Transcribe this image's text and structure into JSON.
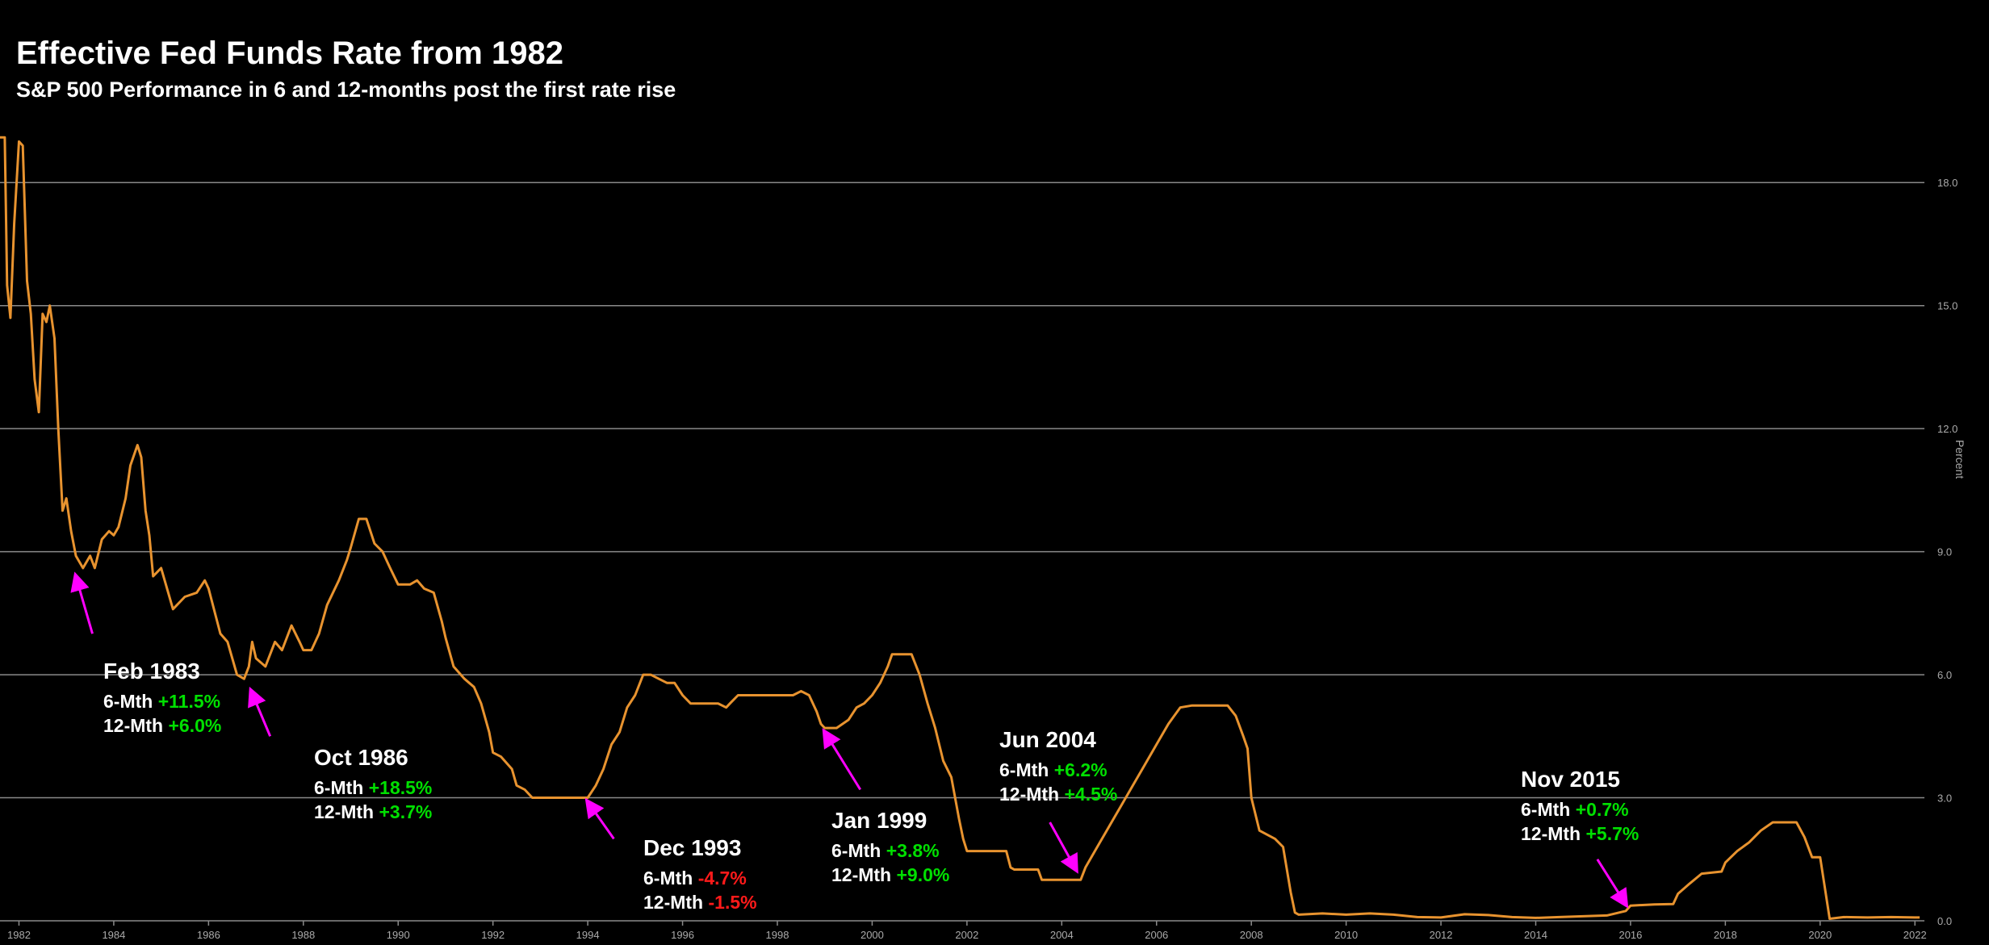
{
  "chart_data": {
    "type": "line",
    "title": "Effective Fed Funds Rate from 1982",
    "subtitle": "S&P 500 Performance in 6 and 12-months post the first rate rise",
    "ylabel": "Percent",
    "xlim": [
      1981.6,
      2022.2
    ],
    "ylim": [
      0,
      19.5
    ],
    "y_ticks": [
      "0.0",
      "3.0",
      "6.0",
      "9.0",
      "12.0",
      "15.0",
      "18.0"
    ],
    "y_tick_values": [
      0,
      3,
      6,
      9,
      12,
      15,
      18
    ],
    "x_ticks": [
      "1982",
      "1984",
      "1986",
      "1988",
      "1990",
      "1992",
      "1994",
      "1996",
      "1998",
      "2000",
      "2002",
      "2004",
      "2006",
      "2008",
      "2010",
      "2012",
      "2014",
      "2016",
      "2018",
      "2020",
      "2022"
    ],
    "x_tick_values": [
      1982,
      1984,
      1986,
      1988,
      1990,
      1992,
      1994,
      1996,
      1998,
      2000,
      2002,
      2004,
      2006,
      2008,
      2010,
      2012,
      2014,
      2016,
      2018,
      2020,
      2022
    ],
    "grid": true,
    "series": [
      {
        "name": "",
        "color": "#e8932f",
        "points": [
          [
            1981.6,
            19.1
          ],
          [
            1981.7,
            19.1
          ],
          [
            1981.75,
            15.5
          ],
          [
            1981.82,
            14.7
          ],
          [
            1981.9,
            17.0
          ],
          [
            1982.0,
            19.0
          ],
          [
            1982.08,
            18.9
          ],
          [
            1982.17,
            15.6
          ],
          [
            1982.25,
            14.8
          ],
          [
            1982.33,
            13.2
          ],
          [
            1982.42,
            12.4
          ],
          [
            1982.5,
            14.8
          ],
          [
            1982.58,
            14.6
          ],
          [
            1982.65,
            15.0
          ],
          [
            1982.75,
            14.2
          ],
          [
            1982.83,
            12.0
          ],
          [
            1982.92,
            10.0
          ],
          [
            1983.0,
            10.3
          ],
          [
            1983.1,
            9.5
          ],
          [
            1983.2,
            8.9
          ],
          [
            1983.35,
            8.6
          ],
          [
            1983.5,
            8.9
          ],
          [
            1983.6,
            8.6
          ],
          [
            1983.75,
            9.3
          ],
          [
            1983.9,
            9.5
          ],
          [
            1984.0,
            9.4
          ],
          [
            1984.1,
            9.6
          ],
          [
            1984.25,
            10.3
          ],
          [
            1984.35,
            11.1
          ],
          [
            1984.5,
            11.6
          ],
          [
            1984.58,
            11.3
          ],
          [
            1984.67,
            10.0
          ],
          [
            1984.75,
            9.4
          ],
          [
            1984.83,
            8.4
          ],
          [
            1985.0,
            8.6
          ],
          [
            1985.25,
            7.6
          ],
          [
            1985.5,
            7.9
          ],
          [
            1985.75,
            8.0
          ],
          [
            1985.92,
            8.3
          ],
          [
            1986.0,
            8.1
          ],
          [
            1986.25,
            7.0
          ],
          [
            1986.4,
            6.8
          ],
          [
            1986.6,
            6.0
          ],
          [
            1986.75,
            5.9
          ],
          [
            1986.85,
            6.2
          ],
          [
            1986.92,
            6.8
          ],
          [
            1987.0,
            6.4
          ],
          [
            1987.2,
            6.2
          ],
          [
            1987.4,
            6.8
          ],
          [
            1987.55,
            6.6
          ],
          [
            1987.75,
            7.2
          ],
          [
            1987.92,
            6.8
          ],
          [
            1988.0,
            6.6
          ],
          [
            1988.17,
            6.6
          ],
          [
            1988.33,
            7.0
          ],
          [
            1988.5,
            7.7
          ],
          [
            1988.75,
            8.3
          ],
          [
            1988.92,
            8.8
          ],
          [
            1989.0,
            9.1
          ],
          [
            1989.17,
            9.8
          ],
          [
            1989.33,
            9.8
          ],
          [
            1989.5,
            9.2
          ],
          [
            1989.67,
            9.0
          ],
          [
            1989.83,
            8.6
          ],
          [
            1990.0,
            8.2
          ],
          [
            1990.25,
            8.2
          ],
          [
            1990.4,
            8.3
          ],
          [
            1990.55,
            8.1
          ],
          [
            1990.75,
            8.0
          ],
          [
            1990.92,
            7.3
          ],
          [
            1991.0,
            6.9
          ],
          [
            1991.17,
            6.2
          ],
          [
            1991.4,
            5.9
          ],
          [
            1991.6,
            5.7
          ],
          [
            1991.75,
            5.3
          ],
          [
            1991.92,
            4.6
          ],
          [
            1992.0,
            4.1
          ],
          [
            1992.17,
            4.0
          ],
          [
            1992.4,
            3.7
          ],
          [
            1992.5,
            3.3
          ],
          [
            1992.67,
            3.2
          ],
          [
            1992.83,
            3.0
          ],
          [
            1993.0,
            3.0
          ],
          [
            1993.25,
            3.0
          ],
          [
            1993.5,
            3.0
          ],
          [
            1993.75,
            3.0
          ],
          [
            1993.92,
            3.0
          ],
          [
            1994.0,
            3.0
          ],
          [
            1994.17,
            3.3
          ],
          [
            1994.33,
            3.7
          ],
          [
            1994.5,
            4.3
          ],
          [
            1994.67,
            4.6
          ],
          [
            1994.83,
            5.2
          ],
          [
            1995.0,
            5.5
          ],
          [
            1995.17,
            6.0
          ],
          [
            1995.33,
            6.0
          ],
          [
            1995.5,
            5.9
          ],
          [
            1995.67,
            5.8
          ],
          [
            1995.83,
            5.8
          ],
          [
            1996.0,
            5.5
          ],
          [
            1996.17,
            5.3
          ],
          [
            1996.5,
            5.3
          ],
          [
            1996.75,
            5.3
          ],
          [
            1996.92,
            5.2
          ],
          [
            1997.0,
            5.3
          ],
          [
            1997.17,
            5.5
          ],
          [
            1997.5,
            5.5
          ],
          [
            1997.75,
            5.5
          ],
          [
            1998.0,
            5.5
          ],
          [
            1998.33,
            5.5
          ],
          [
            1998.5,
            5.6
          ],
          [
            1998.67,
            5.5
          ],
          [
            1998.83,
            5.1
          ],
          [
            1998.92,
            4.8
          ],
          [
            1999.0,
            4.7
          ],
          [
            1999.25,
            4.7
          ],
          [
            1999.5,
            4.9
          ],
          [
            1999.67,
            5.2
          ],
          [
            1999.83,
            5.3
          ],
          [
            2000.0,
            5.5
          ],
          [
            2000.17,
            5.8
          ],
          [
            2000.33,
            6.2
          ],
          [
            2000.42,
            6.5
          ],
          [
            2000.58,
            6.5
          ],
          [
            2000.83,
            6.5
          ],
          [
            2001.0,
            6.0
          ],
          [
            2001.17,
            5.3
          ],
          [
            2001.33,
            4.7
          ],
          [
            2001.5,
            3.9
          ],
          [
            2001.67,
            3.5
          ],
          [
            2001.83,
            2.5
          ],
          [
            2001.92,
            2.0
          ],
          [
            2002.0,
            1.7
          ],
          [
            2002.5,
            1.7
          ],
          [
            2002.83,
            1.7
          ],
          [
            2002.92,
            1.3
          ],
          [
            2003.0,
            1.25
          ],
          [
            2003.5,
            1.25
          ],
          [
            2003.58,
            1.0
          ],
          [
            2003.75,
            1.0
          ],
          [
            2004.0,
            1.0
          ],
          [
            2004.4,
            1.0
          ],
          [
            2004.5,
            1.3
          ],
          [
            2004.75,
            1.8
          ],
          [
            2005.0,
            2.3
          ],
          [
            2005.25,
            2.8
          ],
          [
            2005.5,
            3.3
          ],
          [
            2005.75,
            3.8
          ],
          [
            2006.0,
            4.3
          ],
          [
            2006.25,
            4.8
          ],
          [
            2006.5,
            5.2
          ],
          [
            2006.75,
            5.25
          ],
          [
            2007.0,
            5.25
          ],
          [
            2007.5,
            5.25
          ],
          [
            2007.67,
            5.0
          ],
          [
            2007.83,
            4.5
          ],
          [
            2007.92,
            4.2
          ],
          [
            2008.0,
            3.0
          ],
          [
            2008.17,
            2.2
          ],
          [
            2008.5,
            2.0
          ],
          [
            2008.67,
            1.8
          ],
          [
            2008.83,
            0.7
          ],
          [
            2008.92,
            0.2
          ],
          [
            2009.0,
            0.15
          ],
          [
            2009.5,
            0.18
          ],
          [
            2010.0,
            0.15
          ],
          [
            2010.5,
            0.18
          ],
          [
            2011.0,
            0.15
          ],
          [
            2011.5,
            0.09
          ],
          [
            2012.0,
            0.08
          ],
          [
            2012.5,
            0.16
          ],
          [
            2013.0,
            0.14
          ],
          [
            2013.5,
            0.09
          ],
          [
            2014.0,
            0.07
          ],
          [
            2014.5,
            0.09
          ],
          [
            2015.0,
            0.11
          ],
          [
            2015.5,
            0.13
          ],
          [
            2015.9,
            0.24
          ],
          [
            2016.0,
            0.37
          ],
          [
            2016.5,
            0.4
          ],
          [
            2016.9,
            0.41
          ],
          [
            2017.0,
            0.66
          ],
          [
            2017.25,
            0.91
          ],
          [
            2017.5,
            1.15
          ],
          [
            2017.92,
            1.2
          ],
          [
            2018.0,
            1.42
          ],
          [
            2018.25,
            1.7
          ],
          [
            2018.5,
            1.91
          ],
          [
            2018.75,
            2.2
          ],
          [
            2019.0,
            2.4
          ],
          [
            2019.5,
            2.4
          ],
          [
            2019.67,
            2.04
          ],
          [
            2019.83,
            1.55
          ],
          [
            2020.0,
            1.55
          ],
          [
            2020.2,
            0.05
          ],
          [
            2020.5,
            0.09
          ],
          [
            2021.0,
            0.08
          ],
          [
            2021.5,
            0.09
          ],
          [
            2022.0,
            0.08
          ],
          [
            2022.1,
            0.08
          ]
        ]
      }
    ],
    "annotations": [
      {
        "label": "Feb 1983",
        "six_label": "6-Mth",
        "six_value": "+11.5%",
        "six_color": "#00e000",
        "twelve_label": "12-Mth",
        "twelve_value": "+6.0%",
        "twelve_color": "#00e000",
        "arrow_to": [
          1983.2,
          8.4
        ],
        "arrow_from": [
          1983.55,
          7.0
        ]
      },
      {
        "label": "Oct 1986",
        "six_label": "6-Mth",
        "six_value": "+18.5%",
        "six_color": "#00e000",
        "twelve_label": "12-Mth",
        "twelve_value": "+3.7%",
        "twelve_color": "#00e000",
        "arrow_to": [
          1986.9,
          5.6
        ],
        "arrow_from": [
          1987.3,
          4.5
        ]
      },
      {
        "label": "Dec 1993",
        "six_label": "6-Mth",
        "six_value": "-4.7%",
        "six_color": "#ff1a1a",
        "twelve_label": "12-Mth",
        "twelve_value": "-1.5%",
        "twelve_color": "#ff1a1a",
        "arrow_to": [
          1994.0,
          2.9
        ],
        "arrow_from": [
          1994.55,
          2.0
        ]
      },
      {
        "label": "Jan 1999",
        "six_label": "6-Mth",
        "six_value": "+3.8%",
        "six_color": "#00e000",
        "twelve_label": "12-Mth",
        "twelve_value": "+9.0%",
        "twelve_color": "#00e000",
        "arrow_to": [
          1999.0,
          4.6
        ],
        "arrow_from": [
          1999.75,
          3.2
        ]
      },
      {
        "label": "Jun 2004",
        "six_label": "6-Mth",
        "six_value": "+6.2%",
        "six_color": "#00e000",
        "twelve_label": "12-Mth",
        "twelve_value": "+4.5%",
        "twelve_color": "#00e000",
        "arrow_to": [
          2004.3,
          1.25
        ],
        "arrow_from": [
          2003.75,
          2.4
        ]
      },
      {
        "label": "Nov 2015",
        "six_label": "6-Mth",
        "six_value": "+0.7%",
        "six_color": "#00e000",
        "twelve_label": "12-Mth",
        "twelve_value": "+5.7%",
        "twelve_color": "#00e000",
        "arrow_to": [
          2015.9,
          0.4
        ],
        "arrow_from": [
          2015.3,
          1.5
        ]
      }
    ],
    "colors": {
      "background": "#000000",
      "line": "#e8932f",
      "grid": "#8a8a8a",
      "arrow": "#ff00ff",
      "tick_text": "#aaaaaa",
      "text": "#ffffff"
    }
  }
}
